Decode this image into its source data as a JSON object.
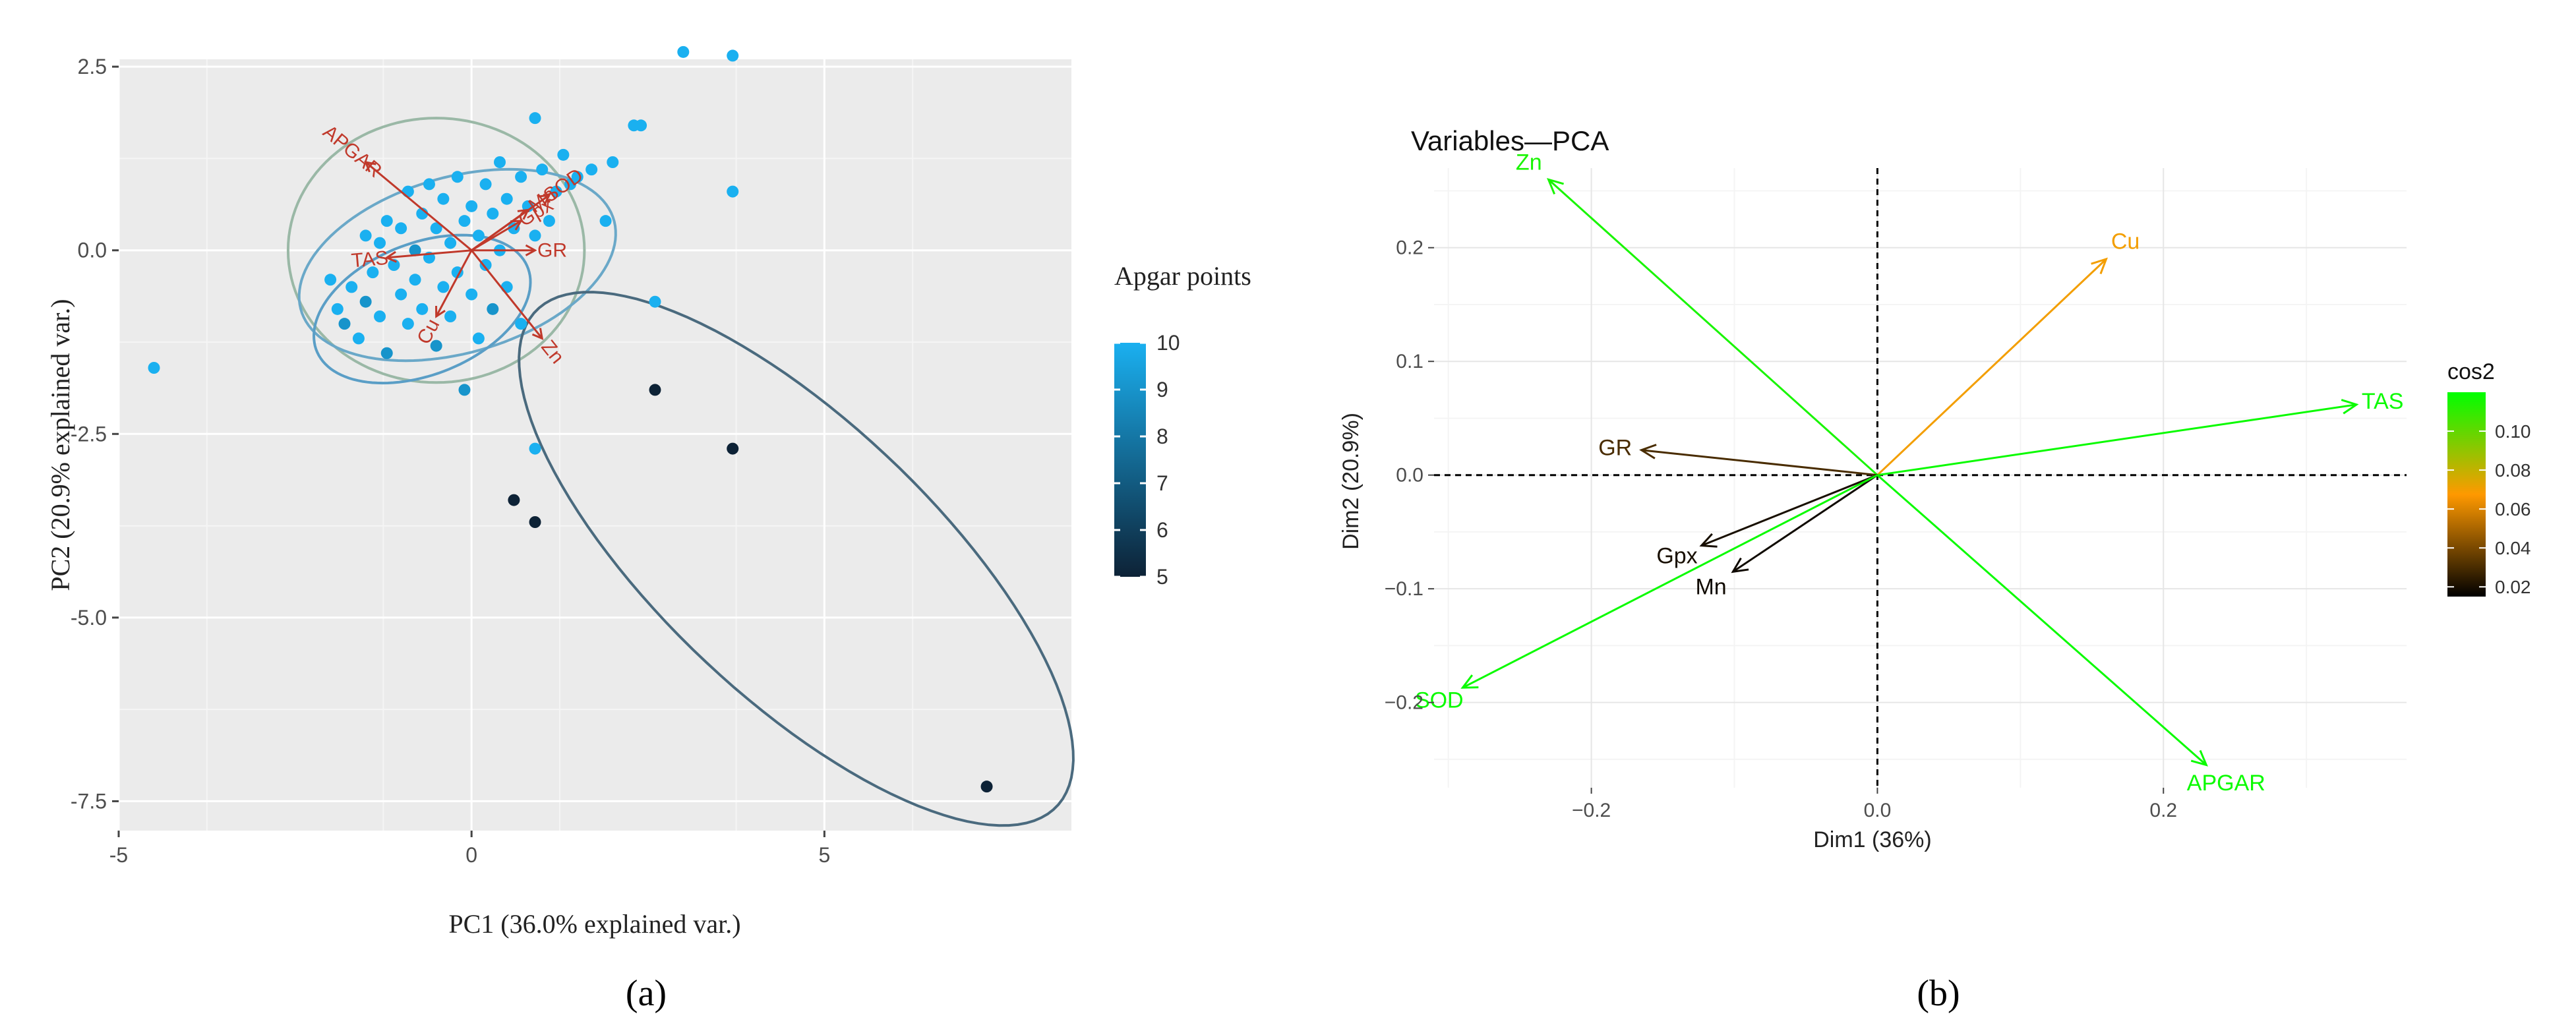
{
  "chart_data": [
    {
      "panel_label": "(a)",
      "type": "scatter",
      "xlabel": "PC1 (36.0% explained var.)",
      "ylabel": "PC2 (20.9% explained var.)",
      "xlim": [
        -5,
        8.5
      ],
      "ylim": [
        -7.9,
        2.6
      ],
      "xticks": [
        -5,
        0,
        5
      ],
      "yticks": [
        2.5,
        0.0,
        -2.5,
        -5.0,
        -7.5
      ],
      "xtick_labels": [
        "-5",
        "0",
        "5"
      ],
      "ytick_labels": [
        "2.5",
        "0.0",
        "-2.5",
        "-5.0",
        "-7.5"
      ],
      "grid": true,
      "legend": {
        "title": "Apgar points",
        "type": "colorbar",
        "range": [
          5,
          10
        ],
        "ticks": [
          10,
          9,
          8,
          7,
          6,
          5
        ],
        "tick_labels": [
          "10",
          "9",
          "8",
          "7",
          "6",
          "5"
        ],
        "placement": "right",
        "color_low": "#0d2236",
        "color_high": "#1ab0f0"
      },
      "points": [
        {
          "x": -4.5,
          "y": -1.6,
          "apgar": 10
        },
        {
          "x": -2.0,
          "y": -0.4,
          "apgar": 10
        },
        {
          "x": -1.9,
          "y": -0.8,
          "apgar": 10
        },
        {
          "x": -1.8,
          "y": -1.0,
          "apgar": 9
        },
        {
          "x": -1.7,
          "y": -0.5,
          "apgar": 10
        },
        {
          "x": -1.6,
          "y": -1.2,
          "apgar": 10
        },
        {
          "x": -1.5,
          "y": 0.2,
          "apgar": 10
        },
        {
          "x": -1.5,
          "y": -0.7,
          "apgar": 9
        },
        {
          "x": -1.4,
          "y": -0.3,
          "apgar": 10
        },
        {
          "x": -1.3,
          "y": 0.1,
          "apgar": 10
        },
        {
          "x": -1.3,
          "y": -0.9,
          "apgar": 10
        },
        {
          "x": -1.2,
          "y": -1.4,
          "apgar": 9
        },
        {
          "x": -1.2,
          "y": 0.4,
          "apgar": 10
        },
        {
          "x": -1.1,
          "y": -0.2,
          "apgar": 10
        },
        {
          "x": -1.0,
          "y": 0.3,
          "apgar": 10
        },
        {
          "x": -1.0,
          "y": -0.6,
          "apgar": 10
        },
        {
          "x": -0.9,
          "y": 0.8,
          "apgar": 10
        },
        {
          "x": -0.9,
          "y": -1.0,
          "apgar": 10
        },
        {
          "x": -0.8,
          "y": 0.0,
          "apgar": 9
        },
        {
          "x": -0.8,
          "y": -0.4,
          "apgar": 10
        },
        {
          "x": -0.7,
          "y": 0.5,
          "apgar": 10
        },
        {
          "x": -0.7,
          "y": -0.8,
          "apgar": 10
        },
        {
          "x": -0.6,
          "y": 0.9,
          "apgar": 10
        },
        {
          "x": -0.6,
          "y": -0.1,
          "apgar": 10
        },
        {
          "x": -0.5,
          "y": -1.3,
          "apgar": 9
        },
        {
          "x": -0.5,
          "y": 0.3,
          "apgar": 10
        },
        {
          "x": -0.4,
          "y": -0.5,
          "apgar": 10
        },
        {
          "x": -0.4,
          "y": 0.7,
          "apgar": 10
        },
        {
          "x": -0.3,
          "y": 0.1,
          "apgar": 10
        },
        {
          "x": -0.3,
          "y": -0.9,
          "apgar": 10
        },
        {
          "x": -0.2,
          "y": 1.0,
          "apgar": 10
        },
        {
          "x": -0.2,
          "y": -0.3,
          "apgar": 10
        },
        {
          "x": -0.1,
          "y": 0.4,
          "apgar": 10
        },
        {
          "x": -0.1,
          "y": -1.9,
          "apgar": 9
        },
        {
          "x": 0.0,
          "y": 0.6,
          "apgar": 10
        },
        {
          "x": 0.0,
          "y": -0.6,
          "apgar": 10
        },
        {
          "x": 0.1,
          "y": 0.2,
          "apgar": 10
        },
        {
          "x": 0.1,
          "y": -1.2,
          "apgar": 10
        },
        {
          "x": 0.2,
          "y": 0.9,
          "apgar": 10
        },
        {
          "x": 0.2,
          "y": -0.2,
          "apgar": 10
        },
        {
          "x": 0.3,
          "y": 0.5,
          "apgar": 10
        },
        {
          "x": 0.3,
          "y": -0.8,
          "apgar": 9
        },
        {
          "x": 0.4,
          "y": 1.2,
          "apgar": 10
        },
        {
          "x": 0.4,
          "y": 0.0,
          "apgar": 10
        },
        {
          "x": 0.5,
          "y": 0.7,
          "apgar": 10
        },
        {
          "x": 0.5,
          "y": -0.5,
          "apgar": 10
        },
        {
          "x": 0.6,
          "y": 0.3,
          "apgar": 10
        },
        {
          "x": 0.7,
          "y": 1.0,
          "apgar": 10
        },
        {
          "x": 0.7,
          "y": -1.0,
          "apgar": 10
        },
        {
          "x": 0.8,
          "y": 0.6,
          "apgar": 10
        },
        {
          "x": 0.9,
          "y": -2.7,
          "apgar": 10
        },
        {
          "x": 0.9,
          "y": 0.2,
          "apgar": 10
        },
        {
          "x": 1.0,
          "y": 1.1,
          "apgar": 10
        },
        {
          "x": 1.1,
          "y": 0.4,
          "apgar": 10
        },
        {
          "x": 1.2,
          "y": 0.8,
          "apgar": 10
        },
        {
          "x": 1.3,
          "y": 1.3,
          "apgar": 10
        },
        {
          "x": 1.4,
          "y": 0.9,
          "apgar": 10
        },
        {
          "x": 1.5,
          "y": 1.0,
          "apgar": 10
        },
        {
          "x": 1.7,
          "y": 1.1,
          "apgar": 10
        },
        {
          "x": 1.9,
          "y": 0.4,
          "apgar": 10
        },
        {
          "x": 2.0,
          "y": 1.2,
          "apgar": 10
        },
        {
          "x": 2.3,
          "y": 1.7,
          "apgar": 10
        },
        {
          "x": 2.4,
          "y": 1.7,
          "apgar": 10
        },
        {
          "x": 2.6,
          "y": -0.7,
          "apgar": 10
        },
        {
          "x": 0.9,
          "y": 1.8,
          "apgar": 10
        },
        {
          "x": 3.0,
          "y": 2.7,
          "apgar": 10
        },
        {
          "x": 3.7,
          "y": 2.65,
          "apgar": 10
        },
        {
          "x": 3.7,
          "y": 0.8,
          "apgar": 10
        },
        {
          "x": 2.6,
          "y": -1.9,
          "apgar": 5
        },
        {
          "x": 3.7,
          "y": -2.7,
          "apgar": 5
        },
        {
          "x": 0.6,
          "y": -3.4,
          "apgar": 5
        },
        {
          "x": 0.9,
          "y": -3.7,
          "apgar": 5
        },
        {
          "x": 7.3,
          "y": -7.3,
          "apgar": 5
        }
      ],
      "ellipses": [
        {
          "center": [
            -0.5,
            0.0
          ],
          "rx": 2.1,
          "ry": 1.8,
          "angle_deg": 0,
          "color": "#9ab8a6"
        },
        {
          "center": [
            -0.2,
            -0.2
          ],
          "rx": 2.3,
          "ry": 1.2,
          "angle_deg": 15,
          "color": "#6aa8c8"
        },
        {
          "center": [
            -0.7,
            -0.8
          ],
          "rx": 1.6,
          "ry": 0.9,
          "angle_deg": 20,
          "color": "#5a9ec6"
        },
        {
          "center": [
            4.6,
            -4.2
          ],
          "rx": 5.0,
          "ry": 1.9,
          "angle_deg": -42,
          "color": "#4a6a7e"
        }
      ],
      "loadings": [
        {
          "name": "APGAR",
          "x": -1.5,
          "y": 1.2
        },
        {
          "name": "SOD",
          "x": 1.1,
          "y": 0.75
        },
        {
          "name": "Mn",
          "x": 0.8,
          "y": 0.55
        },
        {
          "name": "Gpx",
          "x": 0.7,
          "y": 0.4
        },
        {
          "name": "GR",
          "x": 0.9,
          "y": 0.0
        },
        {
          "name": "TAS",
          "x": -1.2,
          "y": -0.1
        },
        {
          "name": "Cu",
          "x": -0.5,
          "y": -0.9
        },
        {
          "name": "Zn",
          "x": 1.0,
          "y": -1.2
        }
      ],
      "loading_color": "#c0392b"
    },
    {
      "panel_label": "(b)",
      "type": "line",
      "title": "Variables—PCA",
      "xlabel": "Dim1 (36%)",
      "ylabel": "Dim2 (20.9%)",
      "xlim": [
        -0.31,
        0.37
      ],
      "ylim": [
        -0.275,
        0.27
      ],
      "xticks": [
        -0.2,
        0.0,
        0.2
      ],
      "yticks": [
        0.2,
        0.1,
        0.0,
        -0.1,
        -0.2
      ],
      "xtick_labels": [
        "−0.2",
        "0.0",
        "0.2"
      ],
      "ytick_labels": [
        "0.2",
        "0.1",
        "0.0",
        "−0.1",
        "−0.2"
      ],
      "grid": true,
      "legend": {
        "title": "cos2",
        "type": "colorbar",
        "range": [
          0.015,
          0.12
        ],
        "ticks": [
          0.1,
          0.08,
          0.06,
          0.04,
          0.02
        ],
        "tick_labels": [
          "0.10",
          "0.08",
          "0.06",
          "0.04",
          "0.02"
        ],
        "placement": "right",
        "colors": [
          "#000000",
          "#ff9900",
          "#00ff00"
        ]
      },
      "vectors": [
        {
          "name": "Zn",
          "x": -0.23,
          "y": 0.26,
          "cos2": 0.115
        },
        {
          "name": "Cu",
          "x": 0.16,
          "y": 0.19,
          "cos2": 0.07
        },
        {
          "name": "TAS",
          "x": 0.335,
          "y": 0.062,
          "cos2": 0.118
        },
        {
          "name": "GR",
          "x": -0.165,
          "y": 0.022,
          "cos2": 0.03
        },
        {
          "name": "Gpx",
          "x": -0.123,
          "y": -0.062,
          "cos2": 0.02
        },
        {
          "name": "Mn",
          "x": -0.101,
          "y": -0.085,
          "cos2": 0.018
        },
        {
          "name": "SOD",
          "x": -0.29,
          "y": -0.187,
          "cos2": 0.118
        },
        {
          "name": "APGAR",
          "x": 0.23,
          "y": -0.255,
          "cos2": 0.118
        }
      ]
    }
  ]
}
